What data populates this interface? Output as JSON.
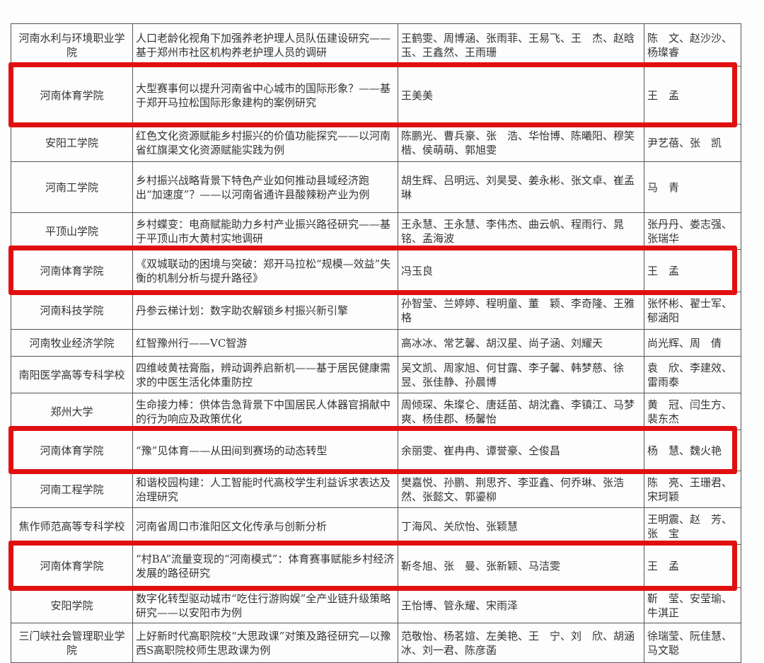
{
  "rows": [
    {
      "school": "河南水利与环境职业学院",
      "title": "人口老龄化视角下加强养老护理人员队伍建设研究——基于郑州市社区机构养老护理人员的调研",
      "members": "王鹤雯、周博涵、张雨菲、王易飞、王　杰、赵晗玉、王鑫然、王雨珊",
      "advisors": "陈　文、赵沙沙、杨璨睿",
      "highlighted": false
    },
    {
      "school": "河南体育学院",
      "title": "大型赛事何以提升河南省中心城市的国际形象？——基于郑开马拉松国际形象建构的案例研究",
      "members": "王美美",
      "advisors": "王　孟",
      "highlighted": true
    },
    {
      "school": "安阳工学院",
      "title": "红色文化资源赋能乡村振兴的价值功能探究——以河南省红旗渠文化资源赋能实践为例",
      "members": "陈鹏光、曹兵豪、张　浩、华怡博、陈曦阳、穆笑楷、侯萌萌、郭旭雯",
      "advisors": "尹艺蓓、张　凯",
      "highlighted": false
    },
    {
      "school": "河南工学院",
      "title": "乡村振兴战略背景下特色产业如何推动县域经济跑出“加速度”？——以河南省通许县酸辣粉产业为例",
      "members": "胡生辉、吕明远、刘昊旻、姜永彬、张文卓、崔孟琳",
      "advisors": "马　青",
      "highlighted": false
    },
    {
      "school": "平顶山学院",
      "title": "乡村蝶变：电商赋能助力乡村产业振兴路径研究——基于平顶山市大黄村实地调研",
      "members": "王永慧、王永慧、李伟杰、曲云帆、程雨行、晁　铭、孟海波",
      "advisors": "张丹丹、娄志强、张瑞华",
      "highlighted": false
    },
    {
      "school": "河南体育学院",
      "title": "《双城联动的困境与突破：郑开马拉松“规模—效益”失衡的机制分析与提升路径》",
      "members": "冯玉良",
      "advisors": "王　孟",
      "highlighted": true
    },
    {
      "school": "河南科技学院",
      "title": "丹参云梯计划：数字助农解锁乡村振兴新引擎",
      "members": "孙智莹、兰婷婷、程明童、董　颖、李奇隆、王雅格",
      "advisors": "张怀彬、翟士军、郁涵阳",
      "highlighted": false
    },
    {
      "school": "河南牧业经济学院",
      "title": "红智豫州行——VC智游",
      "members": "高冰冰、常艺馨、胡汉星、尚子涵、刘耀天",
      "advisors": "尚光辉、周　倩",
      "highlighted": false
    },
    {
      "school": "南阳医学高等专科学校",
      "title": "四维岐黄祛膏脂，辨动调养启新机——基于居民健康需求的中医生活化体重防控",
      "members": "吴文凯、周家旭、何甘露、李子馨、韩梦慈、徐　昱、张佳静、孙晨博",
      "advisors": "袁　欣、李建效、雷雨泰",
      "highlighted": false
    },
    {
      "school": "郑州大学",
      "title": "生命接力棒：供体告急背景下中国居民人体器官捐献中的行为响应及政策优化",
      "members": "周倾琛、朱璨仑、唐廷苗、胡沈鑫、李镇江、马梦爽、杨佳郡、杨馨怡",
      "advisors": "黄　冠、闫生方、裴东杰",
      "highlighted": false
    },
    {
      "school": "河南体育学院",
      "title": "“豫”见体育——从田间到赛场的动态转型",
      "members": "余丽雯、崔冉冉、谭誉豪、仝俊昌",
      "advisors": "杨　慧、魏火艳",
      "highlighted": true
    },
    {
      "school": "河南工程学院",
      "title": "和谐校园构建：人工智能时代高校学生利益诉求表达及治理研究",
      "members": "樊嘉悦、孙鹏、荆思齐、李亚鑫、何乔琳、张浩然、张懿文、郭鎏柳",
      "advisors": "陈　亮、王珊君、宋珂颖",
      "highlighted": false
    },
    {
      "school": "焦作师范高等专科学校",
      "title": "河南省周口市淮阳区文化传承与创新分析",
      "members": "丁海风、关欣怡、张颖慧",
      "advisors": "王明震、赵　芳、张　宝",
      "highlighted": false
    },
    {
      "school": "河南体育学院",
      "title": "“村BA”流量变现的“河南模式”：体育赛事赋能乡村经济发展的路径研究",
      "members": "靳冬旭、张　曼、张新颖、马洁雯",
      "advisors": "王　孟",
      "highlighted": true
    },
    {
      "school": "安阳学院",
      "title": "数字化转型驱动城市“吃住行游购娱”全产业链升级策略研究——以安阳市为例",
      "members": "王怡博、管永耀、宋雨泽",
      "advisors": "靳　莹、安莹瑜、牛淇正",
      "highlighted": false
    },
    {
      "school": "三门峡社会管理职业学院",
      "title": "上好新时代高职院校“大思政课”对策及路径研究—以豫西S高职院校师生思政课为例",
      "members": "范敬怡、杨茗媗、左美艳、王　宁、刘　欣、胡涵冰、刘一君、陈彦菡",
      "advisors": "徐瑞莹、阮佳慧、马文聪",
      "highlighted": false
    }
  ],
  "highlight_color": "#e01010"
}
